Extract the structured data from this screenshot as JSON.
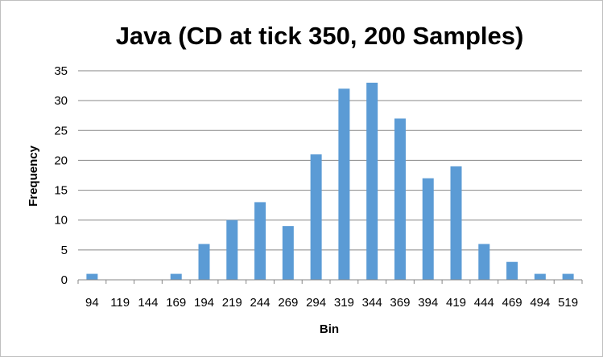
{
  "chart_data": {
    "type": "bar",
    "title": "Java (CD at tick 350, 200 Samples)",
    "xlabel": "Bin",
    "ylabel": "Frequency",
    "categories": [
      "94",
      "119",
      "144",
      "169",
      "194",
      "219",
      "244",
      "269",
      "294",
      "319",
      "344",
      "369",
      "394",
      "419",
      "444",
      "469",
      "494",
      "519"
    ],
    "series": [
      {
        "values": [
          1,
          0,
          0,
          1,
          6,
          10,
          13,
          9,
          21,
          32,
          33,
          27,
          17,
          19,
          6,
          3,
          1,
          1
        ]
      }
    ],
    "ylim": [
      0,
      35
    ],
    "yticks": [
      0,
      5,
      10,
      15,
      20,
      25,
      30,
      35
    ],
    "grid": true,
    "legend": "none",
    "colors": {
      "bar": "#5b9bd5",
      "grid": "#868686",
      "axis": "#868686"
    }
  }
}
